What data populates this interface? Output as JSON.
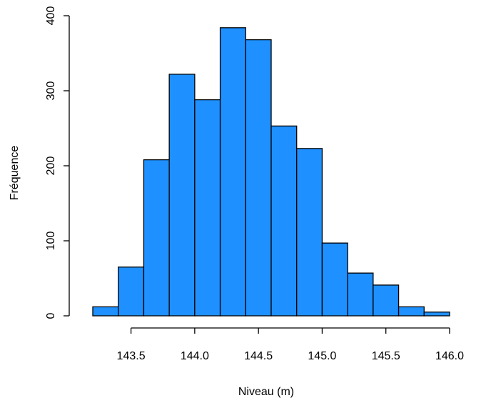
{
  "chart_data": {
    "type": "bar",
    "title": "",
    "xlabel": "Niveau (m)",
    "ylabel": "Fréquence",
    "bar_color": "#1E90FF",
    "bar_edge_color": "#000000",
    "bins": [
      {
        "x0": 143.2,
        "x1": 143.4,
        "count": 12
      },
      {
        "x0": 143.4,
        "x1": 143.6,
        "count": 65
      },
      {
        "x0": 143.6,
        "x1": 143.8,
        "count": 208
      },
      {
        "x0": 143.8,
        "x1": 144.0,
        "count": 322
      },
      {
        "x0": 144.0,
        "x1": 144.2,
        "count": 288
      },
      {
        "x0": 144.2,
        "x1": 144.4,
        "count": 384
      },
      {
        "x0": 144.4,
        "x1": 144.6,
        "count": 368
      },
      {
        "x0": 144.6,
        "x1": 144.8,
        "count": 253
      },
      {
        "x0": 144.8,
        "x1": 145.0,
        "count": 223
      },
      {
        "x0": 145.0,
        "x1": 145.2,
        "count": 97
      },
      {
        "x0": 145.2,
        "x1": 145.4,
        "count": 57
      },
      {
        "x0": 145.4,
        "x1": 145.6,
        "count": 41
      },
      {
        "x0": 145.6,
        "x1": 145.8,
        "count": 12
      },
      {
        "x0": 145.8,
        "x1": 146.0,
        "count": 5
      }
    ],
    "xlim": [
      143.2,
      146.0
    ],
    "ylim": [
      0,
      400
    ],
    "xticks": [
      143.5,
      144.0,
      144.5,
      145.0,
      145.5,
      146.0
    ],
    "xtick_labels": [
      "143.5",
      "144.0",
      "144.5",
      "145.0",
      "145.5",
      "146.0"
    ],
    "yticks": [
      0,
      100,
      200,
      300,
      400
    ],
    "ytick_labels": [
      "0",
      "100",
      "200",
      "300",
      "400"
    ],
    "grid": false,
    "legend": "none"
  }
}
